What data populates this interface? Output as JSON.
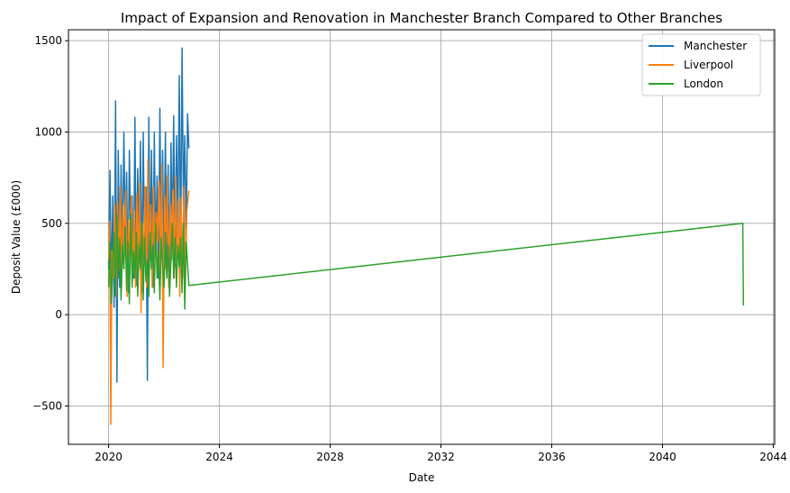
{
  "chart_data": {
    "type": "line",
    "title": "Impact of Expansion and Renovation in Manchester Branch Compared to Other Branches",
    "xlabel": "Date",
    "ylabel": "Deposit Value (£000)",
    "x_axis_type": "date-year",
    "xlim": [
      2018.55,
      2044.05
    ],
    "ylim": [
      -710,
      1560
    ],
    "x_ticks": [
      2020,
      2024,
      2028,
      2032,
      2036,
      2040,
      2044
    ],
    "x_tick_labels": [
      "2020",
      "2024",
      "2028",
      "2032",
      "2036",
      "2040",
      "2044"
    ],
    "y_ticks": [
      -500,
      0,
      500,
      1000,
      1500
    ],
    "y_tick_labels": [
      "−500",
      "0",
      "500",
      "1000",
      "1500"
    ],
    "grid": true,
    "legend_position": "top-right",
    "series": [
      {
        "name": "Manchester",
        "color": "#1f77b4",
        "x": [
          2020.0,
          2020.05,
          2020.1,
          2020.15,
          2020.2,
          2020.25,
          2020.3,
          2020.35,
          2020.4,
          2020.45,
          2020.5,
          2020.55,
          2020.6,
          2020.65,
          2020.7,
          2020.75,
          2020.8,
          2020.85,
          2020.9,
          2020.95,
          2021.0,
          2021.05,
          2021.1,
          2021.15,
          2021.2,
          2021.25,
          2021.3,
          2021.35,
          2021.4,
          2021.45,
          2021.5,
          2021.55,
          2021.6,
          2021.65,
          2021.7,
          2021.75,
          2021.8,
          2021.85,
          2021.9,
          2021.95,
          2022.0,
          2022.05,
          2022.1,
          2022.15,
          2022.2,
          2022.25,
          2022.3,
          2022.35,
          2022.4,
          2022.45,
          2022.5,
          2022.55,
          2022.6,
          2022.65,
          2022.7,
          2022.75,
          2022.8,
          2022.85,
          2022.9
        ],
        "values": [
          250,
          790,
          120,
          650,
          40,
          1170,
          -370,
          900,
          150,
          820,
          300,
          1000,
          450,
          780,
          120,
          900,
          380,
          650,
          200,
          1080,
          160,
          800,
          300,
          950,
          120,
          1000,
          280,
          700,
          -360,
          1080,
          300,
          900,
          150,
          1000,
          320,
          760,
          200,
          1130,
          330,
          900,
          250,
          1000,
          300,
          820,
          150,
          940,
          400,
          1090,
          260,
          980,
          450,
          1310,
          300,
          1460,
          600,
          980,
          420,
          1100,
          910
        ]
      },
      {
        "name": "Liverpool",
        "color": "#ff7f0e",
        "x": [
          2020.0,
          2020.04,
          2020.08,
          2020.12,
          2020.17,
          2020.22,
          2020.27,
          2020.32,
          2020.37,
          2020.42,
          2020.47,
          2020.52,
          2020.57,
          2020.62,
          2020.67,
          2020.72,
          2020.77,
          2020.82,
          2020.87,
          2020.92,
          2020.97,
          2021.02,
          2021.07,
          2021.12,
          2021.17,
          2021.22,
          2021.27,
          2021.32,
          2021.37,
          2021.42,
          2021.47,
          2021.52,
          2021.57,
          2021.62,
          2021.67,
          2021.72,
          2021.77,
          2021.82,
          2021.87,
          2021.92,
          2021.97,
          2022.02,
          2022.07,
          2022.12,
          2022.17,
          2022.22,
          2022.27,
          2022.32,
          2022.37,
          2022.42,
          2022.47,
          2022.52,
          2022.57,
          2022.62,
          2022.67,
          2022.72,
          2022.77,
          2022.82,
          2022.9
        ],
        "values": [
          300,
          510,
          -600,
          350,
          200,
          600,
          100,
          620,
          250,
          700,
          150,
          600,
          350,
          680,
          100,
          520,
          300,
          650,
          200,
          570,
          150,
          660,
          250,
          720,
          10,
          500,
          300,
          700,
          150,
          850,
          250,
          600,
          150,
          700,
          300,
          560,
          400,
          730,
          200,
          820,
          -290,
          650,
          250,
          760,
          150,
          600,
          300,
          680,
          200,
          760,
          300,
          620,
          100,
          640,
          200,
          700,
          150,
          560,
          680
        ]
      },
      {
        "name": "London",
        "color": "#2ca02c",
        "x": [
          2020.0,
          2020.05,
          2020.1,
          2020.15,
          2020.2,
          2020.25,
          2020.3,
          2020.35,
          2020.4,
          2020.45,
          2020.5,
          2020.55,
          2020.6,
          2020.65,
          2020.7,
          2020.75,
          2020.8,
          2020.85,
          2020.9,
          2020.95,
          2021.0,
          2021.05,
          2021.1,
          2021.15,
          2021.2,
          2021.25,
          2021.3,
          2021.35,
          2021.4,
          2021.45,
          2021.5,
          2021.55,
          2021.6,
          2021.65,
          2021.7,
          2021.75,
          2021.8,
          2021.85,
          2021.9,
          2021.95,
          2022.0,
          2022.05,
          2022.1,
          2022.15,
          2022.2,
          2022.25,
          2022.3,
          2022.35,
          2022.4,
          2022.45,
          2022.5,
          2022.55,
          2022.6,
          2022.65,
          2022.7,
          2022.75,
          2022.8,
          2022.9,
          2042.9,
          2042.92
        ],
        "values": [
          150,
          400,
          60,
          300,
          450,
          100,
          550,
          200,
          420,
          80,
          380,
          250,
          480,
          130,
          400,
          60,
          550,
          150,
          350,
          200,
          450,
          100,
          380,
          250,
          500,
          80,
          420,
          180,
          300,
          100,
          450,
          250,
          380,
          120,
          500,
          200,
          350,
          80,
          420,
          280,
          150,
          450,
          200,
          380,
          100,
          300,
          500,
          200,
          420,
          150,
          380,
          260,
          420,
          120,
          500,
          30,
          400,
          160,
          500,
          50
        ]
      }
    ]
  }
}
